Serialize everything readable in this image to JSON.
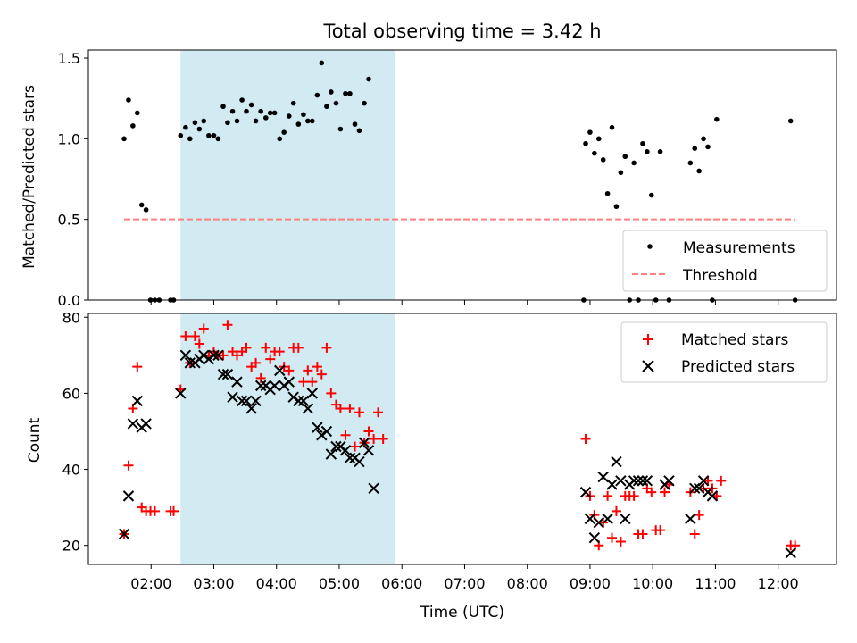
{
  "figure": {
    "title": "Total observing time = 3.42 h",
    "xlabel": "Time (UTC)",
    "xticks": [
      "02:00",
      "03:00",
      "04:00",
      "05:00",
      "06:00",
      "07:00",
      "08:00",
      "09:00",
      "10:00",
      "11:00",
      "12:00"
    ],
    "xtick_hours": [
      2,
      3,
      4,
      5,
      6,
      7,
      8,
      9,
      10,
      11,
      12
    ],
    "xlim_hours": [
      1.0,
      12.93
    ],
    "shaded_span_hours": [
      2.47,
      5.89
    ],
    "colors": {
      "shade": "#add8e6",
      "measure": "#000000",
      "threshold": "#ff8080",
      "matched": "#ff0000",
      "predicted": "#000000"
    }
  },
  "chart_data": [
    {
      "type": "scatter",
      "title": "Total observing time = 3.42 h",
      "xlabel": "",
      "ylabel": "Matched/Predicted stars",
      "ylim": [
        0,
        1.55
      ],
      "yticks": [
        "0.0",
        "0.5",
        "1.0",
        "1.5"
      ],
      "ytick_values": [
        0,
        0.5,
        1.0,
        1.5
      ],
      "legend": [
        "Measurements",
        "Threshold"
      ],
      "legend_position": "lower-right",
      "threshold": {
        "name": "Threshold",
        "y": 0.5,
        "x_range": [
          1.57,
          12.27
        ]
      },
      "series": [
        {
          "name": "Measurements",
          "points": [
            [
              1.57,
              1.0
            ],
            [
              1.64,
              1.24
            ],
            [
              1.71,
              1.08
            ],
            [
              1.78,
              1.16
            ],
            [
              1.85,
              0.59
            ],
            [
              1.92,
              0.56
            ],
            [
              1.99,
              0.0
            ],
            [
              2.06,
              0.0
            ],
            [
              2.13,
              0.0
            ],
            [
              2.31,
              0.0
            ],
            [
              2.36,
              0.0
            ],
            [
              2.47,
              1.02
            ],
            [
              2.55,
              1.07
            ],
            [
              2.62,
              1.0
            ],
            [
              2.7,
              1.1
            ],
            [
              2.77,
              1.06
            ],
            [
              2.84,
              1.11
            ],
            [
              2.92,
              1.02
            ],
            [
              3.0,
              1.02
            ],
            [
              3.07,
              1.0
            ],
            [
              3.15,
              1.2
            ],
            [
              3.22,
              1.1
            ],
            [
              3.3,
              1.17
            ],
            [
              3.37,
              1.11
            ],
            [
              3.45,
              1.24
            ],
            [
              3.52,
              1.17
            ],
            [
              3.6,
              1.21
            ],
            [
              3.67,
              1.11
            ],
            [
              3.75,
              1.17
            ],
            [
              3.83,
              1.13
            ],
            [
              3.9,
              1.16
            ],
            [
              3.97,
              1.16
            ],
            [
              4.05,
              1.0
            ],
            [
              4.12,
              1.04
            ],
            [
              4.2,
              1.14
            ],
            [
              4.27,
              1.22
            ],
            [
              4.35,
              1.09
            ],
            [
              4.43,
              1.15
            ],
            [
              4.5,
              1.11
            ],
            [
              4.57,
              1.11
            ],
            [
              4.65,
              1.27
            ],
            [
              4.72,
              1.47
            ],
            [
              4.8,
              1.2
            ],
            [
              4.87,
              1.29
            ],
            [
              4.95,
              1.22
            ],
            [
              5.02,
              1.06
            ],
            [
              5.1,
              1.28
            ],
            [
              5.17,
              1.28
            ],
            [
              5.25,
              1.09
            ],
            [
              5.32,
              1.05
            ],
            [
              5.4,
              1.22
            ],
            [
              5.47,
              1.37
            ],
            [
              8.9,
              0.0
            ],
            [
              8.93,
              0.97
            ],
            [
              9.0,
              1.04
            ],
            [
              9.07,
              0.91
            ],
            [
              9.14,
              1.0
            ],
            [
              9.21,
              0.87
            ],
            [
              9.28,
              0.66
            ],
            [
              9.35,
              1.07
            ],
            [
              9.42,
              0.58
            ],
            [
              9.49,
              0.79
            ],
            [
              9.56,
              0.89
            ],
            [
              9.63,
              0.0
            ],
            [
              9.7,
              0.85
            ],
            [
              9.77,
              0.0
            ],
            [
              9.84,
              0.97
            ],
            [
              9.91,
              0.92
            ],
            [
              9.98,
              0.65
            ],
            [
              10.05,
              0.0
            ],
            [
              10.12,
              0.92
            ],
            [
              10.26,
              0.0
            ],
            [
              10.6,
              0.85
            ],
            [
              10.67,
              0.94
            ],
            [
              10.74,
              0.8
            ],
            [
              10.81,
              1.0
            ],
            [
              10.88,
              0.95
            ],
            [
              10.95,
              0.0
            ],
            [
              11.02,
              1.12
            ],
            [
              12.2,
              1.11
            ],
            [
              12.27,
              0.0
            ]
          ]
        }
      ]
    },
    {
      "type": "scatter",
      "xlabel": "Time (UTC)",
      "ylabel": "Count",
      "ylim": [
        15,
        81
      ],
      "yticks": [
        "20",
        "40",
        "60",
        "80"
      ],
      "ytick_values": [
        20,
        40,
        60,
        80
      ],
      "legend": [
        "Matched stars",
        "Predicted stars"
      ],
      "legend_position": "upper-right",
      "series": [
        {
          "name": "Matched stars",
          "marker": "plus",
          "points": [
            [
              1.57,
              23
            ],
            [
              1.64,
              41
            ],
            [
              1.71,
              56
            ],
            [
              1.78,
              67
            ],
            [
              1.85,
              30
            ],
            [
              1.92,
              29
            ],
            [
              1.99,
              29
            ],
            [
              2.06,
              29
            ],
            [
              2.31,
              29
            ],
            [
              2.36,
              29
            ],
            [
              2.47,
              61
            ],
            [
              2.55,
              75
            ],
            [
              2.62,
              68
            ],
            [
              2.7,
              75
            ],
            [
              2.77,
              73
            ],
            [
              2.84,
              77
            ],
            [
              2.92,
              70
            ],
            [
              3.0,
              71
            ],
            [
              3.07,
              70
            ],
            [
              3.15,
              70
            ],
            [
              3.22,
              78
            ],
            [
              3.3,
              71
            ],
            [
              3.37,
              70
            ],
            [
              3.45,
              71
            ],
            [
              3.52,
              72
            ],
            [
              3.6,
              67
            ],
            [
              3.67,
              68
            ],
            [
              3.75,
              64
            ],
            [
              3.83,
              72
            ],
            [
              3.9,
              69
            ],
            [
              3.97,
              71
            ],
            [
              4.05,
              71
            ],
            [
              4.12,
              67
            ],
            [
              4.2,
              66
            ],
            [
              4.27,
              72
            ],
            [
              4.35,
              72
            ],
            [
              4.43,
              63
            ],
            [
              4.5,
              66
            ],
            [
              4.57,
              63
            ],
            [
              4.65,
              67
            ],
            [
              4.72,
              65
            ],
            [
              4.8,
              72
            ],
            [
              4.87,
              60
            ],
            [
              4.95,
              57
            ],
            [
              5.02,
              56
            ],
            [
              5.1,
              49
            ],
            [
              5.17,
              56
            ],
            [
              5.25,
              46
            ],
            [
              5.32,
              55
            ],
            [
              5.4,
              47
            ],
            [
              5.47,
              50
            ],
            [
              5.55,
              48
            ],
            [
              5.62,
              55
            ],
            [
              5.7,
              48
            ],
            [
              8.93,
              48
            ],
            [
              9.0,
              33
            ],
            [
              9.07,
              28
            ],
            [
              9.14,
              20
            ],
            [
              9.21,
              26
            ],
            [
              9.28,
              33
            ],
            [
              9.35,
              22
            ],
            [
              9.42,
              29
            ],
            [
              9.49,
              21
            ],
            [
              9.56,
              33
            ],
            [
              9.63,
              33
            ],
            [
              9.7,
              33
            ],
            [
              9.77,
              23
            ],
            [
              9.84,
              23
            ],
            [
              9.91,
              35
            ],
            [
              9.98,
              34
            ],
            [
              10.05,
              24
            ],
            [
              10.12,
              24
            ],
            [
              10.19,
              34
            ],
            [
              10.26,
              36
            ],
            [
              10.6,
              34
            ],
            [
              10.67,
              23
            ],
            [
              10.74,
              28
            ],
            [
              10.81,
              35
            ],
            [
              10.88,
              37
            ],
            [
              10.95,
              35
            ],
            [
              11.02,
              33
            ],
            [
              11.09,
              37
            ],
            [
              12.2,
              20
            ],
            [
              12.27,
              20
            ]
          ]
        },
        {
          "name": "Predicted stars",
          "marker": "x",
          "points": [
            [
              1.57,
              23
            ],
            [
              1.64,
              33
            ],
            [
              1.71,
              52
            ],
            [
              1.78,
              58
            ],
            [
              1.85,
              51
            ],
            [
              1.92,
              52
            ],
            [
              2.47,
              60
            ],
            [
              2.55,
              70
            ],
            [
              2.62,
              68
            ],
            [
              2.7,
              68
            ],
            [
              2.77,
              69
            ],
            [
              2.84,
              70
            ],
            [
              2.92,
              69
            ],
            [
              3.0,
              70
            ],
            [
              3.07,
              70
            ],
            [
              3.15,
              65
            ],
            [
              3.22,
              65
            ],
            [
              3.3,
              59
            ],
            [
              3.37,
              63
            ],
            [
              3.45,
              58
            ],
            [
              3.52,
              58
            ],
            [
              3.6,
              56
            ],
            [
              3.67,
              58
            ],
            [
              3.75,
              62
            ],
            [
              3.83,
              62
            ],
            [
              3.9,
              61
            ],
            [
              3.97,
              62
            ],
            [
              4.05,
              66
            ],
            [
              4.12,
              62
            ],
            [
              4.2,
              63
            ],
            [
              4.27,
              59
            ],
            [
              4.35,
              58
            ],
            [
              4.43,
              58
            ],
            [
              4.5,
              56
            ],
            [
              4.57,
              60
            ],
            [
              4.65,
              51
            ],
            [
              4.72,
              49
            ],
            [
              4.8,
              50
            ],
            [
              4.87,
              44
            ],
            [
              4.95,
              46
            ],
            [
              5.02,
              46
            ],
            [
              5.1,
              45
            ],
            [
              5.17,
              43
            ],
            [
              5.25,
              43
            ],
            [
              5.32,
              42
            ],
            [
              5.4,
              47
            ],
            [
              5.47,
              45
            ],
            [
              5.55,
              35
            ],
            [
              8.93,
              34
            ],
            [
              9.0,
              27
            ],
            [
              9.07,
              22
            ],
            [
              9.14,
              26
            ],
            [
              9.21,
              38
            ],
            [
              9.28,
              27
            ],
            [
              9.35,
              36
            ],
            [
              9.42,
              42
            ],
            [
              9.49,
              37
            ],
            [
              9.56,
              27
            ],
            [
              9.63,
              36
            ],
            [
              9.7,
              37
            ],
            [
              9.77,
              37
            ],
            [
              9.84,
              37
            ],
            [
              9.91,
              37
            ],
            [
              10.19,
              36
            ],
            [
              10.26,
              37
            ],
            [
              10.6,
              27
            ],
            [
              10.67,
              35
            ],
            [
              10.74,
              35
            ],
            [
              10.81,
              37
            ],
            [
              10.88,
              34
            ],
            [
              10.95,
              33
            ],
            [
              12.2,
              18
            ]
          ]
        }
      ]
    }
  ]
}
